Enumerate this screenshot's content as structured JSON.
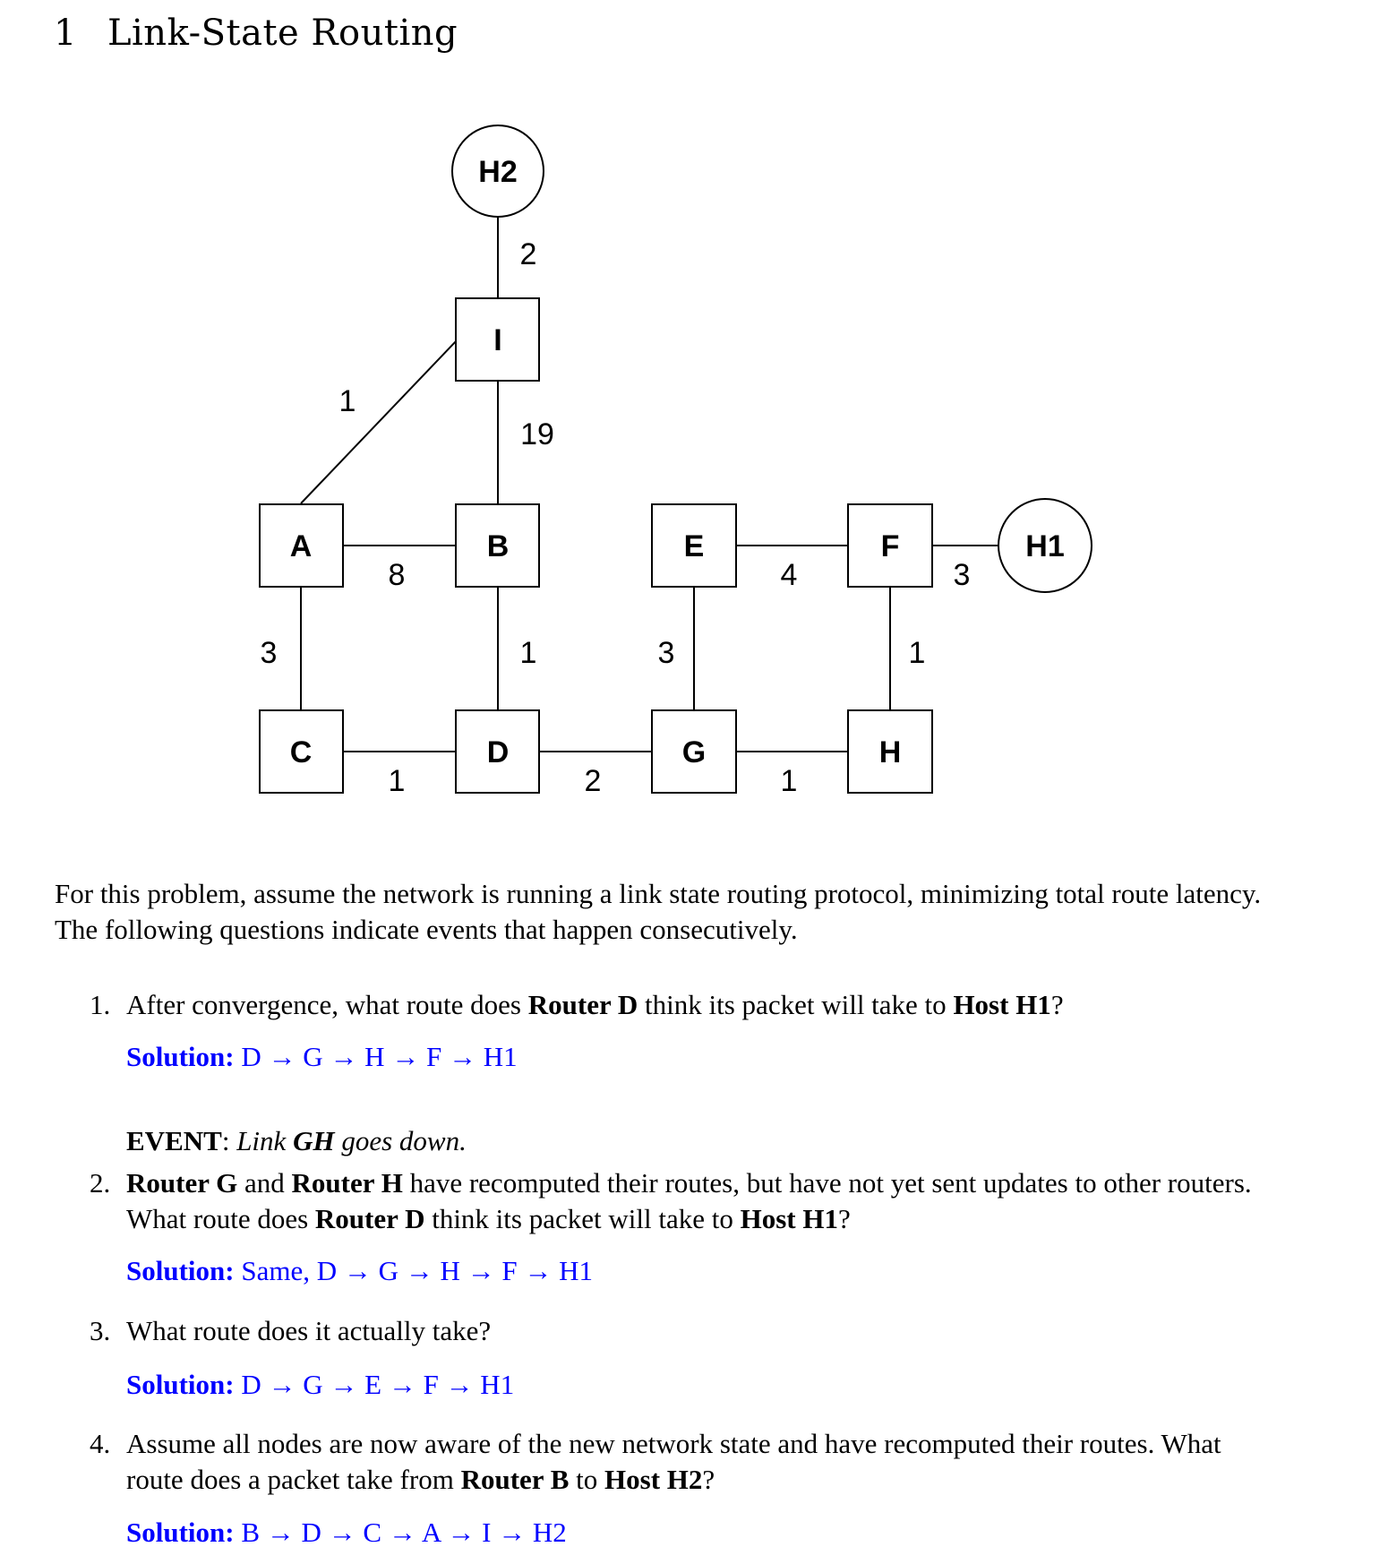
{
  "section": {
    "number": "1",
    "title": "Link-State Routing"
  },
  "diagram": {
    "nodes": [
      {
        "id": "H2",
        "shape": "circle"
      },
      {
        "id": "I",
        "shape": "square"
      },
      {
        "id": "A",
        "shape": "square"
      },
      {
        "id": "B",
        "shape": "square"
      },
      {
        "id": "C",
        "shape": "square"
      },
      {
        "id": "D",
        "shape": "square"
      },
      {
        "id": "E",
        "shape": "square"
      },
      {
        "id": "F",
        "shape": "square"
      },
      {
        "id": "G",
        "shape": "square"
      },
      {
        "id": "H",
        "shape": "square"
      },
      {
        "id": "H1",
        "shape": "circle"
      }
    ],
    "edges": [
      {
        "from": "H2",
        "to": "I",
        "weight": "2"
      },
      {
        "from": "A",
        "to": "I",
        "weight": "1"
      },
      {
        "from": "I",
        "to": "B",
        "weight": "19"
      },
      {
        "from": "A",
        "to": "B",
        "weight": "8"
      },
      {
        "from": "E",
        "to": "F",
        "weight": "4"
      },
      {
        "from": "F",
        "to": "H1",
        "weight": "3"
      },
      {
        "from": "A",
        "to": "C",
        "weight": "3"
      },
      {
        "from": "B",
        "to": "D",
        "weight": "1"
      },
      {
        "from": "E",
        "to": "G",
        "weight": "3"
      },
      {
        "from": "F",
        "to": "H",
        "weight": "1"
      },
      {
        "from": "C",
        "to": "D",
        "weight": "1"
      },
      {
        "from": "D",
        "to": "G",
        "weight": "2"
      },
      {
        "from": "G",
        "to": "H",
        "weight": "1"
      }
    ]
  },
  "intro": {
    "line1": "For this problem, assume the network is running a link state routing protocol, minimizing total route latency.",
    "line2": "The following questions indicate events that happen consecutively."
  },
  "solution_label": "Solution:",
  "q1": {
    "num": "1.",
    "t1": "After convergence, what route does ",
    "b1": "Router D",
    "t2": " think its packet will take to ",
    "b2": "Host H1",
    "t3": "?",
    "solution": "D → G → H → F → H1"
  },
  "event": {
    "label": "EVENT",
    "colon": ": ",
    "t1": "Link ",
    "b1": "GH",
    "t2": " goes down."
  },
  "q2": {
    "num": "2.",
    "b1": "Router G",
    "t1": " and ",
    "b2": "Router H",
    "t2": " have recomputed their routes, but have not yet sent updates to other routers.",
    "t3": "What route does ",
    "b3": "Router D",
    "t4": " think its packet will take to ",
    "b4": "Host H1",
    "t5": "?",
    "solution": "Same, D → G → H → F → H1"
  },
  "q3": {
    "num": "3.",
    "text": "What route does it actually take?",
    "solution": "D → G → E → F → H1"
  },
  "q4": {
    "num": "4.",
    "t1": "Assume all nodes are now aware of the new network state and have recomputed their routes. What",
    "t2": "route does a packet take from ",
    "b1": "Router B",
    "t3": " to ",
    "b2": "Host H2",
    "t4": "?",
    "solution": "B → D → C → A → I → H2"
  }
}
